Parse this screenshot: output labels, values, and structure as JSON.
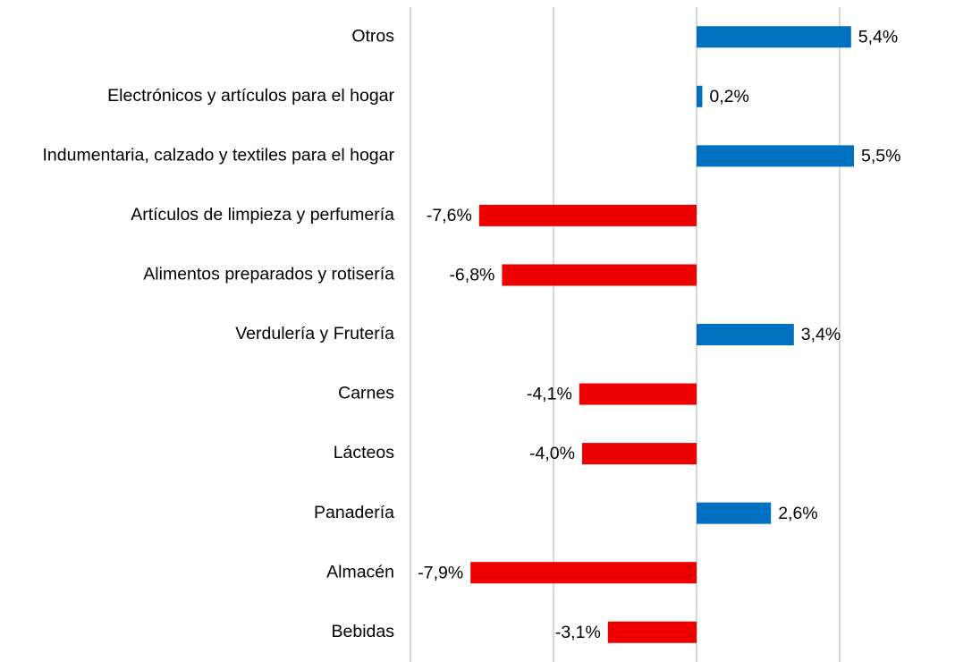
{
  "chart_data": {
    "type": "hbar",
    "categories": [
      "Otros",
      "Electrónicos y artículos para el hogar",
      "Indumentaria, calzado y textiles para el hogar",
      "Artículos de limpieza y perfumería",
      "Alimentos preparados y rotisería",
      "Verdulería y Frutería",
      "Carnes",
      "Lácteos",
      "Panadería",
      "Almacén",
      "Bebidas"
    ],
    "values": [
      5.4,
      0.2,
      5.5,
      -7.6,
      -6.8,
      3.4,
      -4.1,
      -4.0,
      2.6,
      -7.9,
      -3.1
    ],
    "value_labels": [
      "5,4%",
      "0,2%",
      "5,5%",
      "-7,6%",
      "-6,8%",
      "3,4%",
      "-4,1%",
      "-4,0%",
      "2,6%",
      "-7,9%",
      "-3,1%"
    ],
    "color_positive": "#0070c0",
    "color_negative": "#ee0000",
    "xlim": [
      -10,
      10
    ],
    "xticks": [
      -10,
      -5,
      0,
      5
    ],
    "grid": true
  }
}
